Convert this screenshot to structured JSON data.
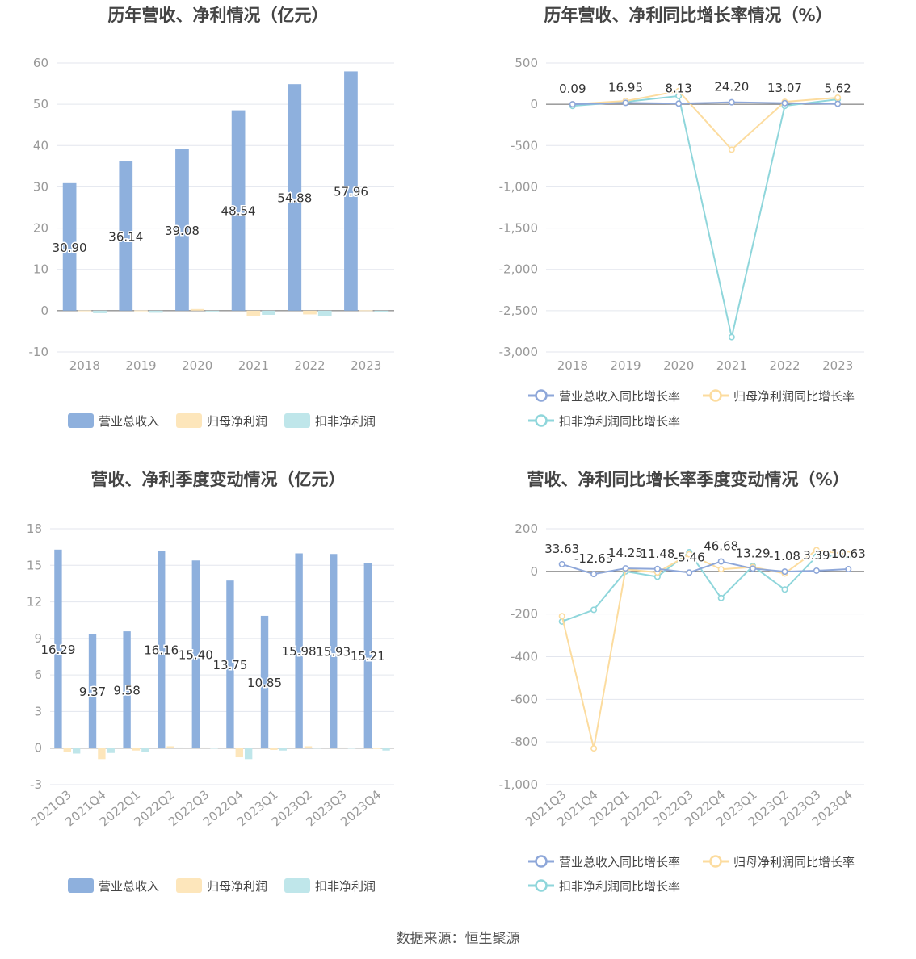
{
  "footer": "数据来源：恒生聚源",
  "colors": {
    "revenue": "#8eb0dd",
    "net_profit": "#fde6bb",
    "deducted": "#bfe6ea",
    "revenue_line": "#8ea7d9",
    "net_profit_line": "#fcdc9f",
    "deducted_line": "#8fd6db",
    "grid": "#e3e6ee",
    "axis_text": "#999999",
    "label_text": "#333333",
    "title_text": "#444444"
  },
  "chart_data": [
    {
      "id": "annual-bars",
      "type": "bar",
      "title": "历年营收、净利情况（亿元）",
      "categories": [
        "2018",
        "2019",
        "2020",
        "2021",
        "2022",
        "2023"
      ],
      "ylim": [
        -10,
        60
      ],
      "yticks": [
        "-10",
        "0",
        "10",
        "20",
        "30",
        "40",
        "50",
        "60"
      ],
      "yticks_values": [
        -10,
        0,
        10,
        20,
        30,
        40,
        50,
        60
      ],
      "grid": true,
      "legend_position": "bottom",
      "series": [
        {
          "name": "营业总收入",
          "values": [
            30.9,
            36.14,
            39.08,
            48.54,
            54.88,
            57.96
          ],
          "labels": [
            "30.90",
            "36.14",
            "39.08",
            "48.54",
            "54.88",
            "57.96"
          ]
        },
        {
          "name": "归母净利润",
          "values": [
            0.05,
            0.06,
            0.4,
            -1.3,
            -0.9,
            0.1
          ]
        },
        {
          "name": "扣非净利润",
          "values": [
            -0.6,
            -0.5,
            -0.05,
            -1.0,
            -1.2,
            -0.4
          ]
        }
      ]
    },
    {
      "id": "annual-growth",
      "type": "line",
      "title": "历年营收、净利同比增长率情况（%）",
      "categories": [
        "2018",
        "2019",
        "2020",
        "2021",
        "2022",
        "2023"
      ],
      "ylim": [
        -3000,
        500
      ],
      "yticks": [
        "-3,000",
        "-2,500",
        "-2,000",
        "-1,500",
        "-1,000",
        "-500",
        "0",
        "500"
      ],
      "yticks_values": [
        -3000,
        -2500,
        -2000,
        -1500,
        -1000,
        -500,
        0,
        500
      ],
      "grid": true,
      "legend_position": "bottom",
      "series": [
        {
          "name": "营业总收入同比增长率",
          "values": [
            0.09,
            16.95,
            8.13,
            24.2,
            13.07,
            5.62
          ],
          "labels": [
            "0.09",
            "16.95",
            "8.13",
            "24.20",
            "13.07",
            "5.62"
          ]
        },
        {
          "name": "归母净利润同比增长率",
          "values": [
            0,
            40,
            160,
            -550,
            30,
            80
          ]
        },
        {
          "name": "扣非净利润同比增长率",
          "values": [
            -20,
            30,
            100,
            -2820,
            -20,
            60
          ]
        }
      ]
    },
    {
      "id": "quarterly-bars",
      "type": "bar",
      "title": "营收、净利季度变动情况（亿元）",
      "categories": [
        "2021Q3",
        "2021Q4",
        "2022Q1",
        "2022Q2",
        "2022Q3",
        "2022Q4",
        "2023Q1",
        "2023Q2",
        "2023Q3",
        "2023Q4"
      ],
      "ylim": [
        -3,
        18
      ],
      "yticks": [
        "-3",
        "0",
        "3",
        "6",
        "9",
        "12",
        "15",
        "18"
      ],
      "yticks_values": [
        -3,
        0,
        3,
        6,
        9,
        12,
        15,
        18
      ],
      "grid": true,
      "legend_position": "bottom",
      "series": [
        {
          "name": "营业总收入",
          "values": [
            16.29,
            9.37,
            9.58,
            16.16,
            15.4,
            13.75,
            10.85,
            15.98,
            15.93,
            15.21
          ],
          "labels": [
            "16.29",
            "9.37",
            "9.58",
            "16.16",
            "15.40",
            "13.75",
            "10.85",
            "15.98",
            "15.93",
            "15.21"
          ]
        },
        {
          "name": "归母净利润",
          "values": [
            -0.35,
            -0.9,
            -0.2,
            0.15,
            0.05,
            -0.75,
            -0.15,
            0.15,
            0.05,
            -0.05
          ]
        },
        {
          "name": "扣非净利润",
          "values": [
            -0.45,
            -0.4,
            -0.3,
            0.05,
            0.02,
            -0.9,
            -0.2,
            0.03,
            0.02,
            -0.2
          ]
        }
      ]
    },
    {
      "id": "quarterly-growth",
      "type": "line",
      "title": "营收、净利同比增长率季度变动情况（%）",
      "categories": [
        "2021Q3",
        "2021Q4",
        "2022Q1",
        "2022Q2",
        "2022Q3",
        "2022Q4",
        "2023Q1",
        "2023Q2",
        "2023Q3",
        "2023Q4"
      ],
      "ylim": [
        -1000,
        200
      ],
      "yticks": [
        "-1,000",
        "-800",
        "-600",
        "-400",
        "-200",
        "0",
        "200"
      ],
      "yticks_values": [
        -1000,
        -800,
        -600,
        -400,
        -200,
        0,
        200
      ],
      "grid": true,
      "legend_position": "bottom",
      "series": [
        {
          "name": "营业总收入同比增长率",
          "values": [
            33.63,
            -12.63,
            14.25,
            11.48,
            -5.46,
            46.68,
            13.29,
            -1.08,
            3.39,
            10.63
          ],
          "labels": [
            "33.63",
            "-12.63",
            "14.25",
            "11.48",
            "-5.46",
            "46.68",
            "13.29",
            "-1.08",
            "3.39",
            "10.63"
          ]
        },
        {
          "name": "归母净利润同比增长率",
          "values": [
            -210,
            -830,
            10,
            -5,
            80,
            10,
            20,
            -10,
            100,
            80
          ]
        },
        {
          "name": "扣非净利润同比增长率",
          "values": [
            -235,
            -180,
            0,
            -25,
            90,
            -125,
            25,
            -85,
            70,
            75
          ]
        }
      ]
    }
  ]
}
